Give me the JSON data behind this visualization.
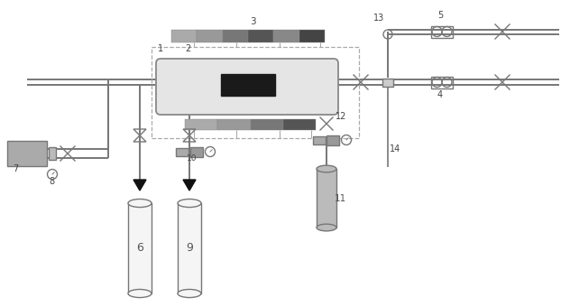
{
  "bg": "#ffffff",
  "lc": "#777777",
  "dk": "#333333",
  "figsize": [
    6.22,
    3.4
  ],
  "dpi": 100,
  "pipe_lw": 1.4,
  "comp_lw": 1.0,
  "bar_top_colors": [
    "#aaaaaa",
    "#999999",
    "#777777",
    "#555555",
    "#888888",
    "#444444"
  ],
  "bar_bot_colors": [
    "#aaaaaa",
    "#999999",
    "#777777",
    "#555555"
  ],
  "core_fc": "#e8e8e8",
  "pump_fc": "#aaaaaa",
  "cyl_fc": "#f2f2f2",
  "cyl11_fc": "#bbbbbb"
}
